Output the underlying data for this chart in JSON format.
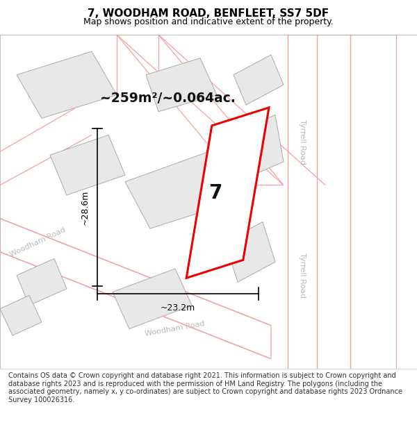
{
  "title": "7, WOODHAM ROAD, BENFLEET, SS7 5DF",
  "subtitle": "Map shows position and indicative extent of the property.",
  "footer": "Contains OS data © Crown copyright and database right 2021. This information is subject to Crown copyright and database rights 2023 and is reproduced with the permission of HM Land Registry. The polygons (including the associated geometry, namely x, y co-ordinates) are subject to Crown copyright and database rights 2023 Ordnance Survey 100026316.",
  "area_text": "~259m²/~0.064ac.",
  "dim_height": "~28.6m",
  "dim_width": "~23.2m",
  "label_7": "7",
  "bg_color": "#ffffff",
  "map_bg": "#ffffff",
  "building_fill": "#e8e8e8",
  "building_edge": "#aaaaaa",
  "road_line_color": "#f5a0a0",
  "highlight_fill": "#ffffff",
  "highlight_line_color": "#ee0000",
  "road_label_color": "#bbbbbb",
  "dim_color": "#000000",
  "area_color": "#111111",
  "title_color": "#000000",
  "title_fontsize": 11,
  "subtitle_fontsize": 9,
  "footer_fontsize": 7
}
